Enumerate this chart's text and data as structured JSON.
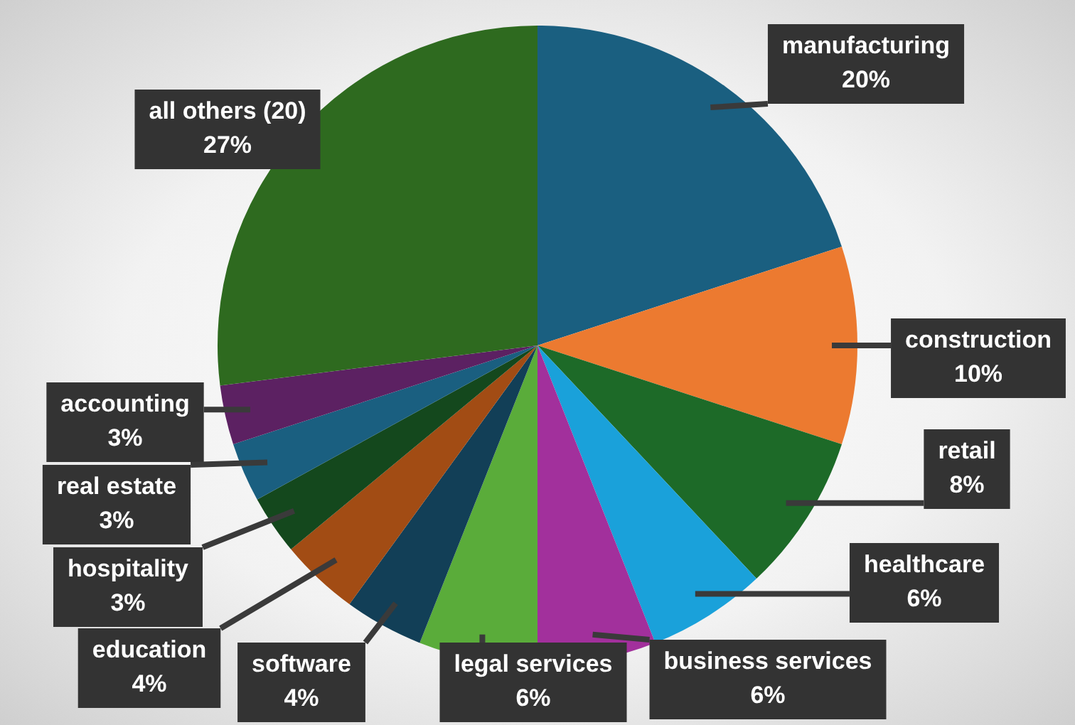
{
  "chart_data": {
    "type": "pie",
    "categories": [
      "manufacturing",
      "construction",
      "retail",
      "healthcare",
      "business services",
      "legal services",
      "software",
      "education",
      "hospitality",
      "real estate",
      "accounting",
      "all others (20)"
    ],
    "values": [
      20,
      10,
      8,
      6,
      6,
      6,
      4,
      4,
      3,
      3,
      3,
      27
    ],
    "value_labels": [
      "20%",
      "10%",
      "8%",
      "6%",
      "6%",
      "6%",
      "4%",
      "4%",
      "3%",
      "3%",
      "3%",
      "27%"
    ],
    "colors": [
      "#1a5f80",
      "#ec7a30",
      "#1d6a28",
      "#1aa1da",
      "#a2309c",
      "#5aac3a",
      "#123f57",
      "#a24c14",
      "#14481d",
      "#1a5f80",
      "#5c2162",
      "#2e6a1f"
    ],
    "legend": false
  }
}
